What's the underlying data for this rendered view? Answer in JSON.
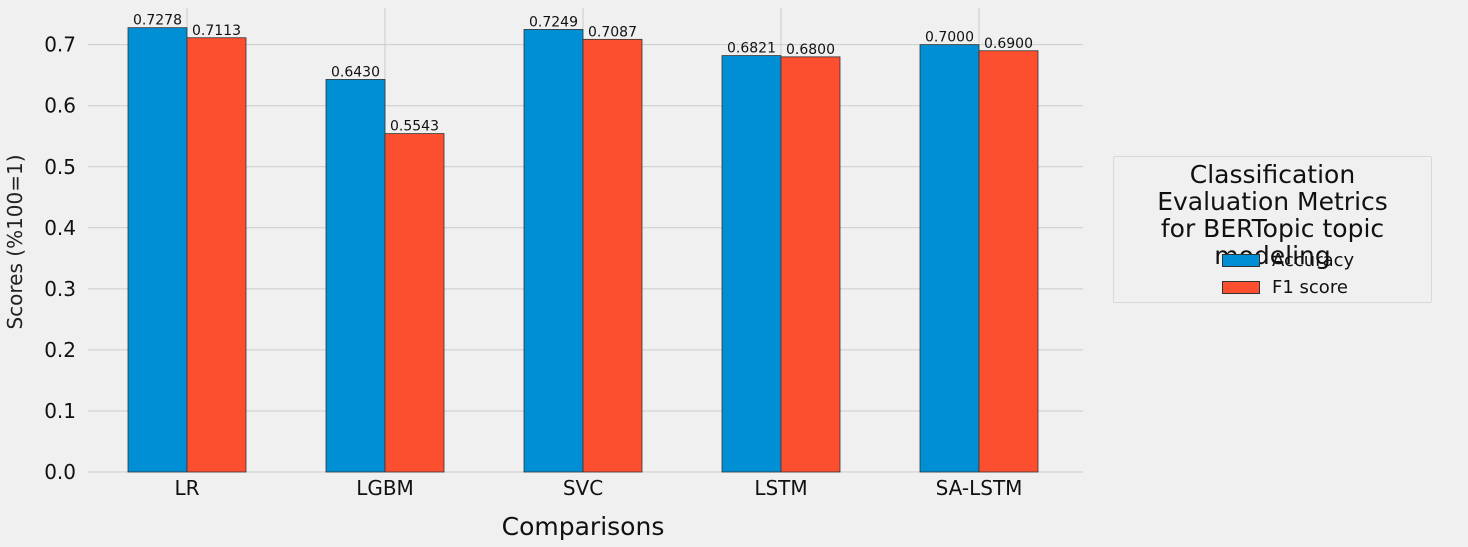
{
  "chart_data": {
    "type": "bar",
    "title": "",
    "xlabel": "Comparisons",
    "ylabel": "Scores (%100=1)",
    "categories": [
      "LR",
      "LGBM",
      "SVC",
      "LSTM",
      "SA-LSTM"
    ],
    "series": [
      {
        "name": "Accuracy",
        "color": "#008fd5",
        "values": [
          0.7278,
          0.643,
          0.7249,
          0.6821,
          0.7
        ],
        "labels": [
          "0.7278",
          "0.6430",
          "0.7249",
          "0.6821",
          "0.7000"
        ]
      },
      {
        "name": "F1 score",
        "color": "#fc4f30",
        "values": [
          0.7113,
          0.5543,
          0.7087,
          0.68,
          0.69
        ],
        "labels": [
          "0.7113",
          "0.5543",
          "0.7087",
          "0.6800",
          "0.6900"
        ]
      }
    ],
    "yticks": [
      "0.0",
      "0.1",
      "0.2",
      "0.3",
      "0.4",
      "0.5",
      "0.6",
      "0.7"
    ],
    "ylim": [
      0,
      0.765
    ],
    "grid": true,
    "legend": {
      "title": "Classification\nEvaluation Metrics\nfor BERTopic topic modeling",
      "placement": "outside-right"
    }
  }
}
